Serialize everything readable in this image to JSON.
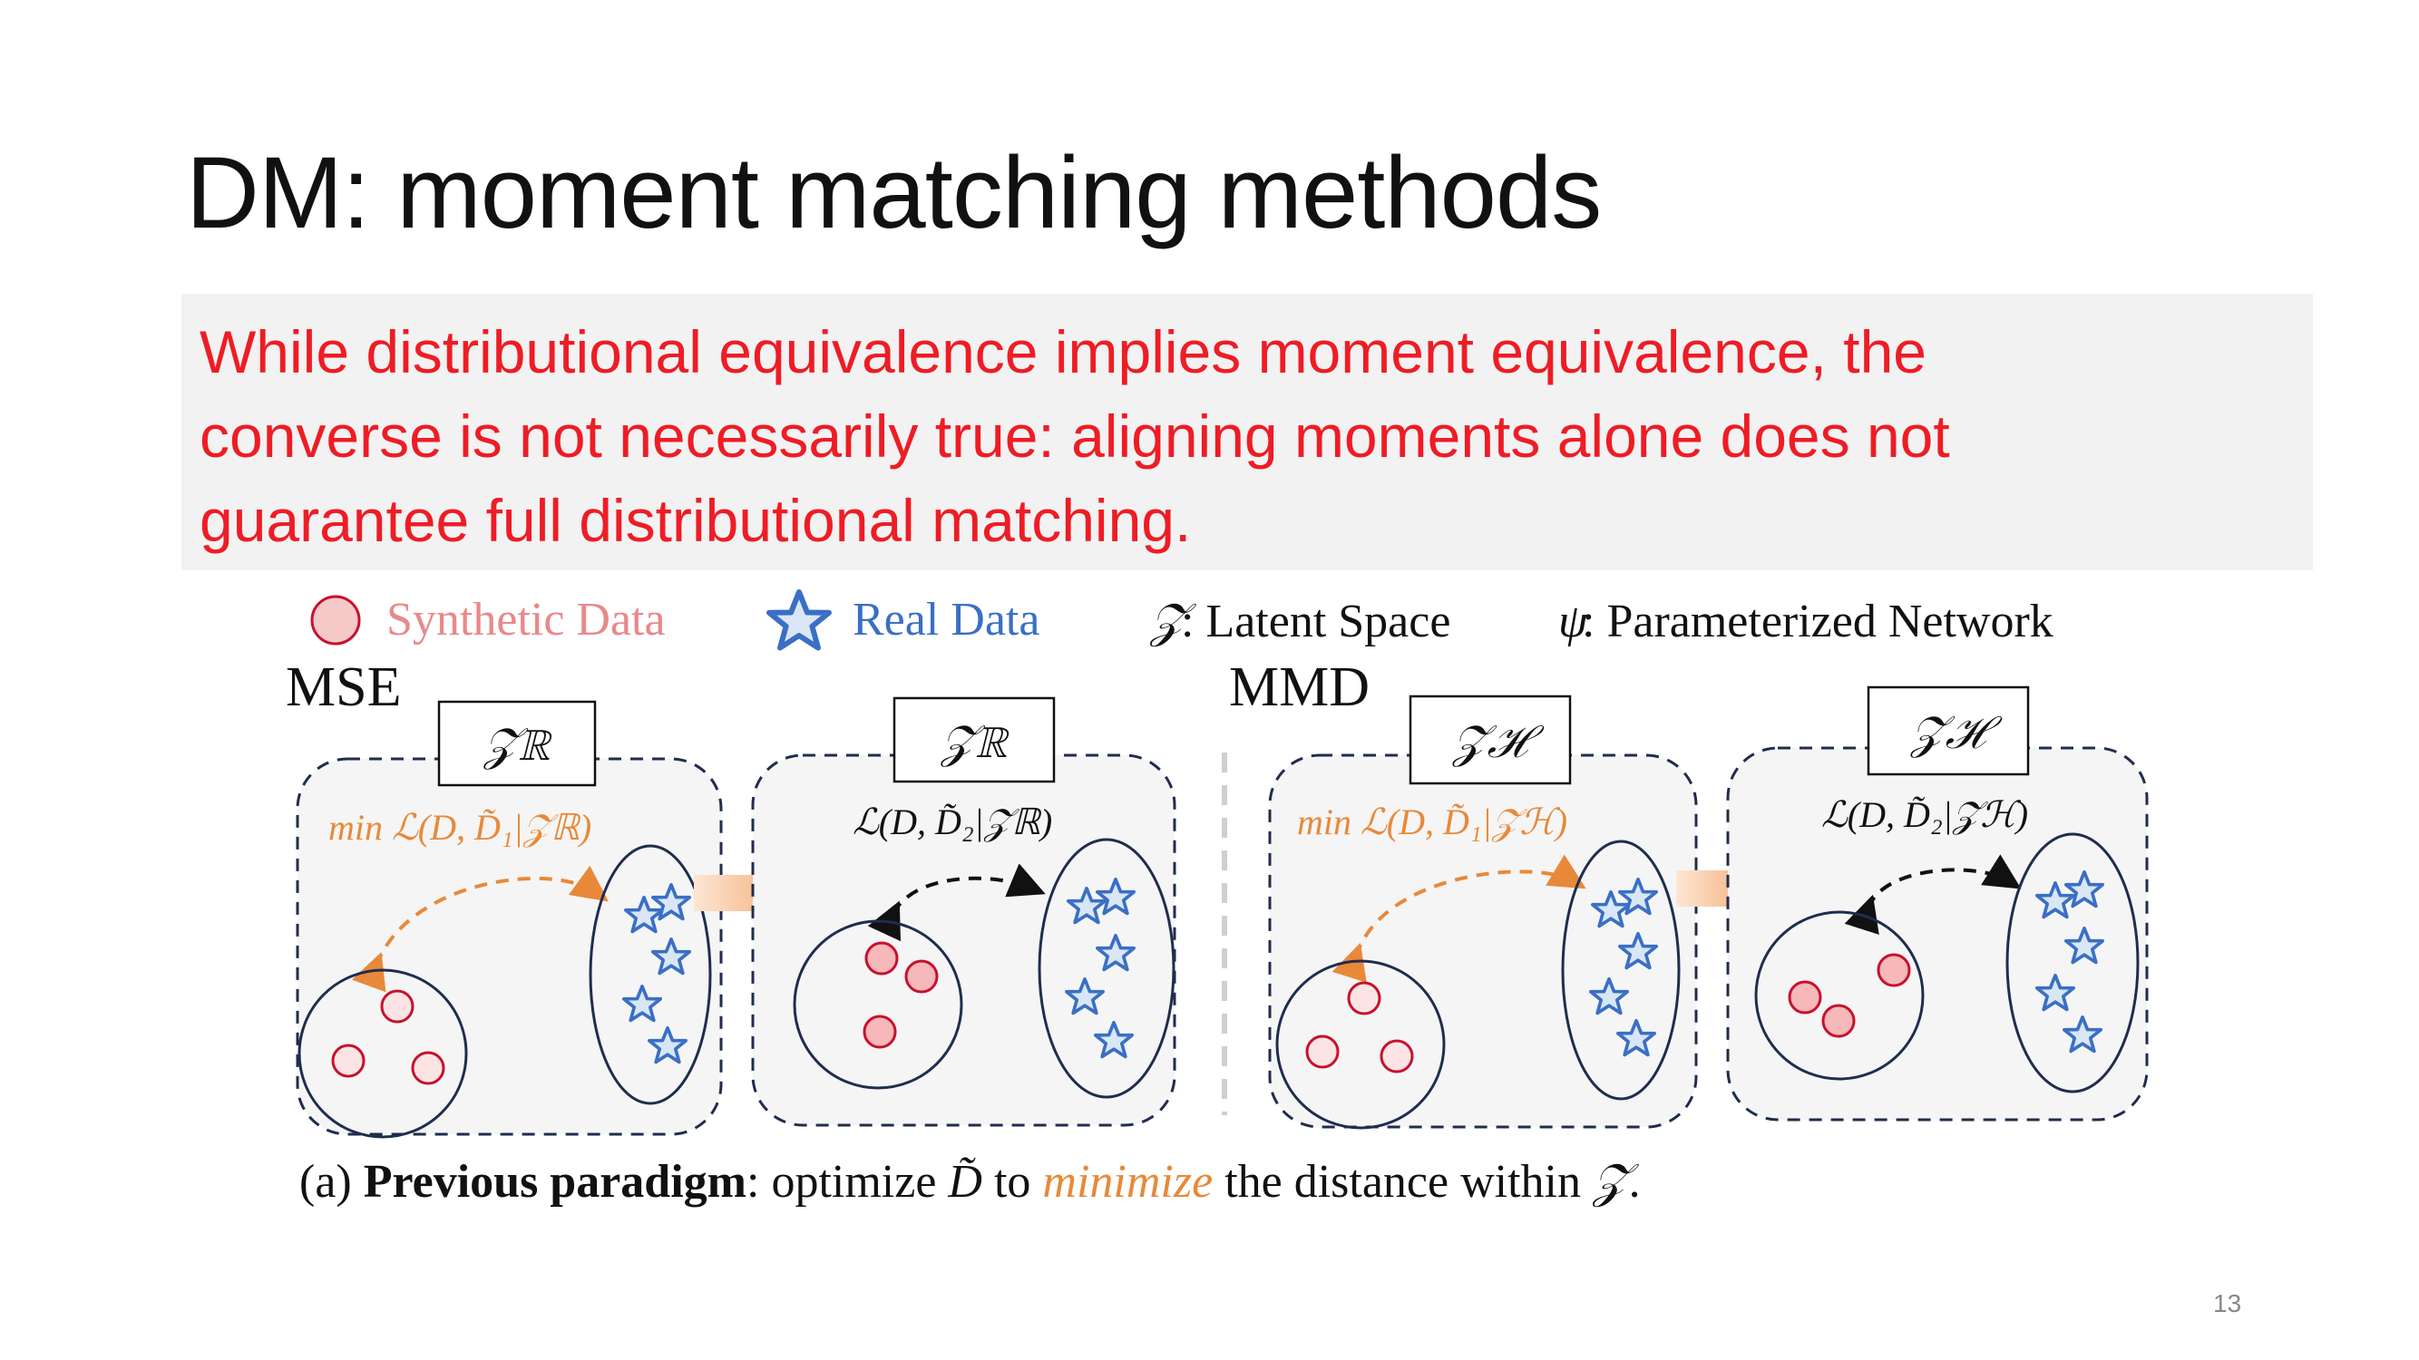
{
  "slide": {
    "title": "DM: moment matching methods",
    "callout_line1": "While distributional equivalence implies moment equivalence, the",
    "callout_line2": "converse is not necessarily true: aligning moments alone does not",
    "callout_line3": "guarantee full distributional matching.",
    "page_number": "13"
  },
  "legend": {
    "synthetic": "Synthetic Data",
    "real": "Real Data",
    "latent_symbol": "𝒵",
    "latent_label": ": Latent Space",
    "network_symbol": "ψ",
    "network_label": ": Parameterized Network"
  },
  "panels": {
    "mse_label": "MSE",
    "mmd_label": "MMD",
    "z_r": "𝒵ℝ",
    "z_h": "𝒵ℋ",
    "mse_loss1": "min ℒ(D, D̃₁|𝒵ℝ)",
    "mse_loss2": "ℒ(D, D̃₂|𝒵ℝ)",
    "mmd_loss1": "min ℒ(D, D̃₁|𝒵ℋ)",
    "mmd_loss2": "ℒ(D, D̃₂|𝒵ℋ)"
  },
  "caption": {
    "prefix": "(a) ",
    "bold": "Previous paradigm",
    "part1": ": optimize ",
    "dtilde": "D̃",
    "part2": " to ",
    "emph": "minimize",
    "part3": " the distance within ",
    "z": "𝒵",
    "end": "."
  },
  "colors": {
    "synthetic_fill": "#f6c9c9",
    "synthetic_stroke": "#c8102e",
    "real_fill": "#d9e6f5",
    "real_stroke": "#3a6fc4",
    "orange": "#e8893a",
    "navy": "#1f2d4e",
    "callout_text": "#ee1c25"
  }
}
